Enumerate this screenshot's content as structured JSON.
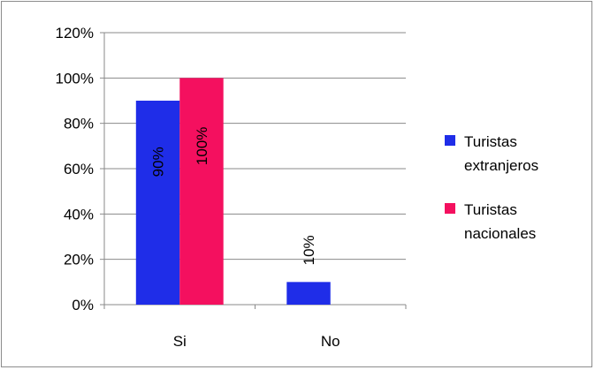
{
  "chart_data": {
    "type": "bar",
    "categories": [
      "Si",
      "No"
    ],
    "series": [
      {
        "name": "Turistas extranjeros",
        "values": [
          90,
          10
        ],
        "color": "#1f2de8",
        "value_labels": [
          "90%",
          "10%"
        ]
      },
      {
        "name": "Turistas nacionales",
        "values": [
          100,
          null
        ],
        "color": "#f4105f",
        "value_labels": [
          "100%",
          null
        ]
      }
    ],
    "ylim": [
      0,
      120
    ],
    "yticks": [
      0,
      20,
      40,
      60,
      80,
      100,
      120
    ],
    "ytick_labels": [
      "0%",
      "20%",
      "40%",
      "60%",
      "80%",
      "100%",
      "120%"
    ],
    "grid": true,
    "legend_position": "right",
    "legend_lines": [
      [
        "Turistas",
        "extranjeros"
      ],
      [
        "Turistas",
        "nacionales"
      ]
    ],
    "title": "",
    "xlabel": "",
    "ylabel": ""
  }
}
